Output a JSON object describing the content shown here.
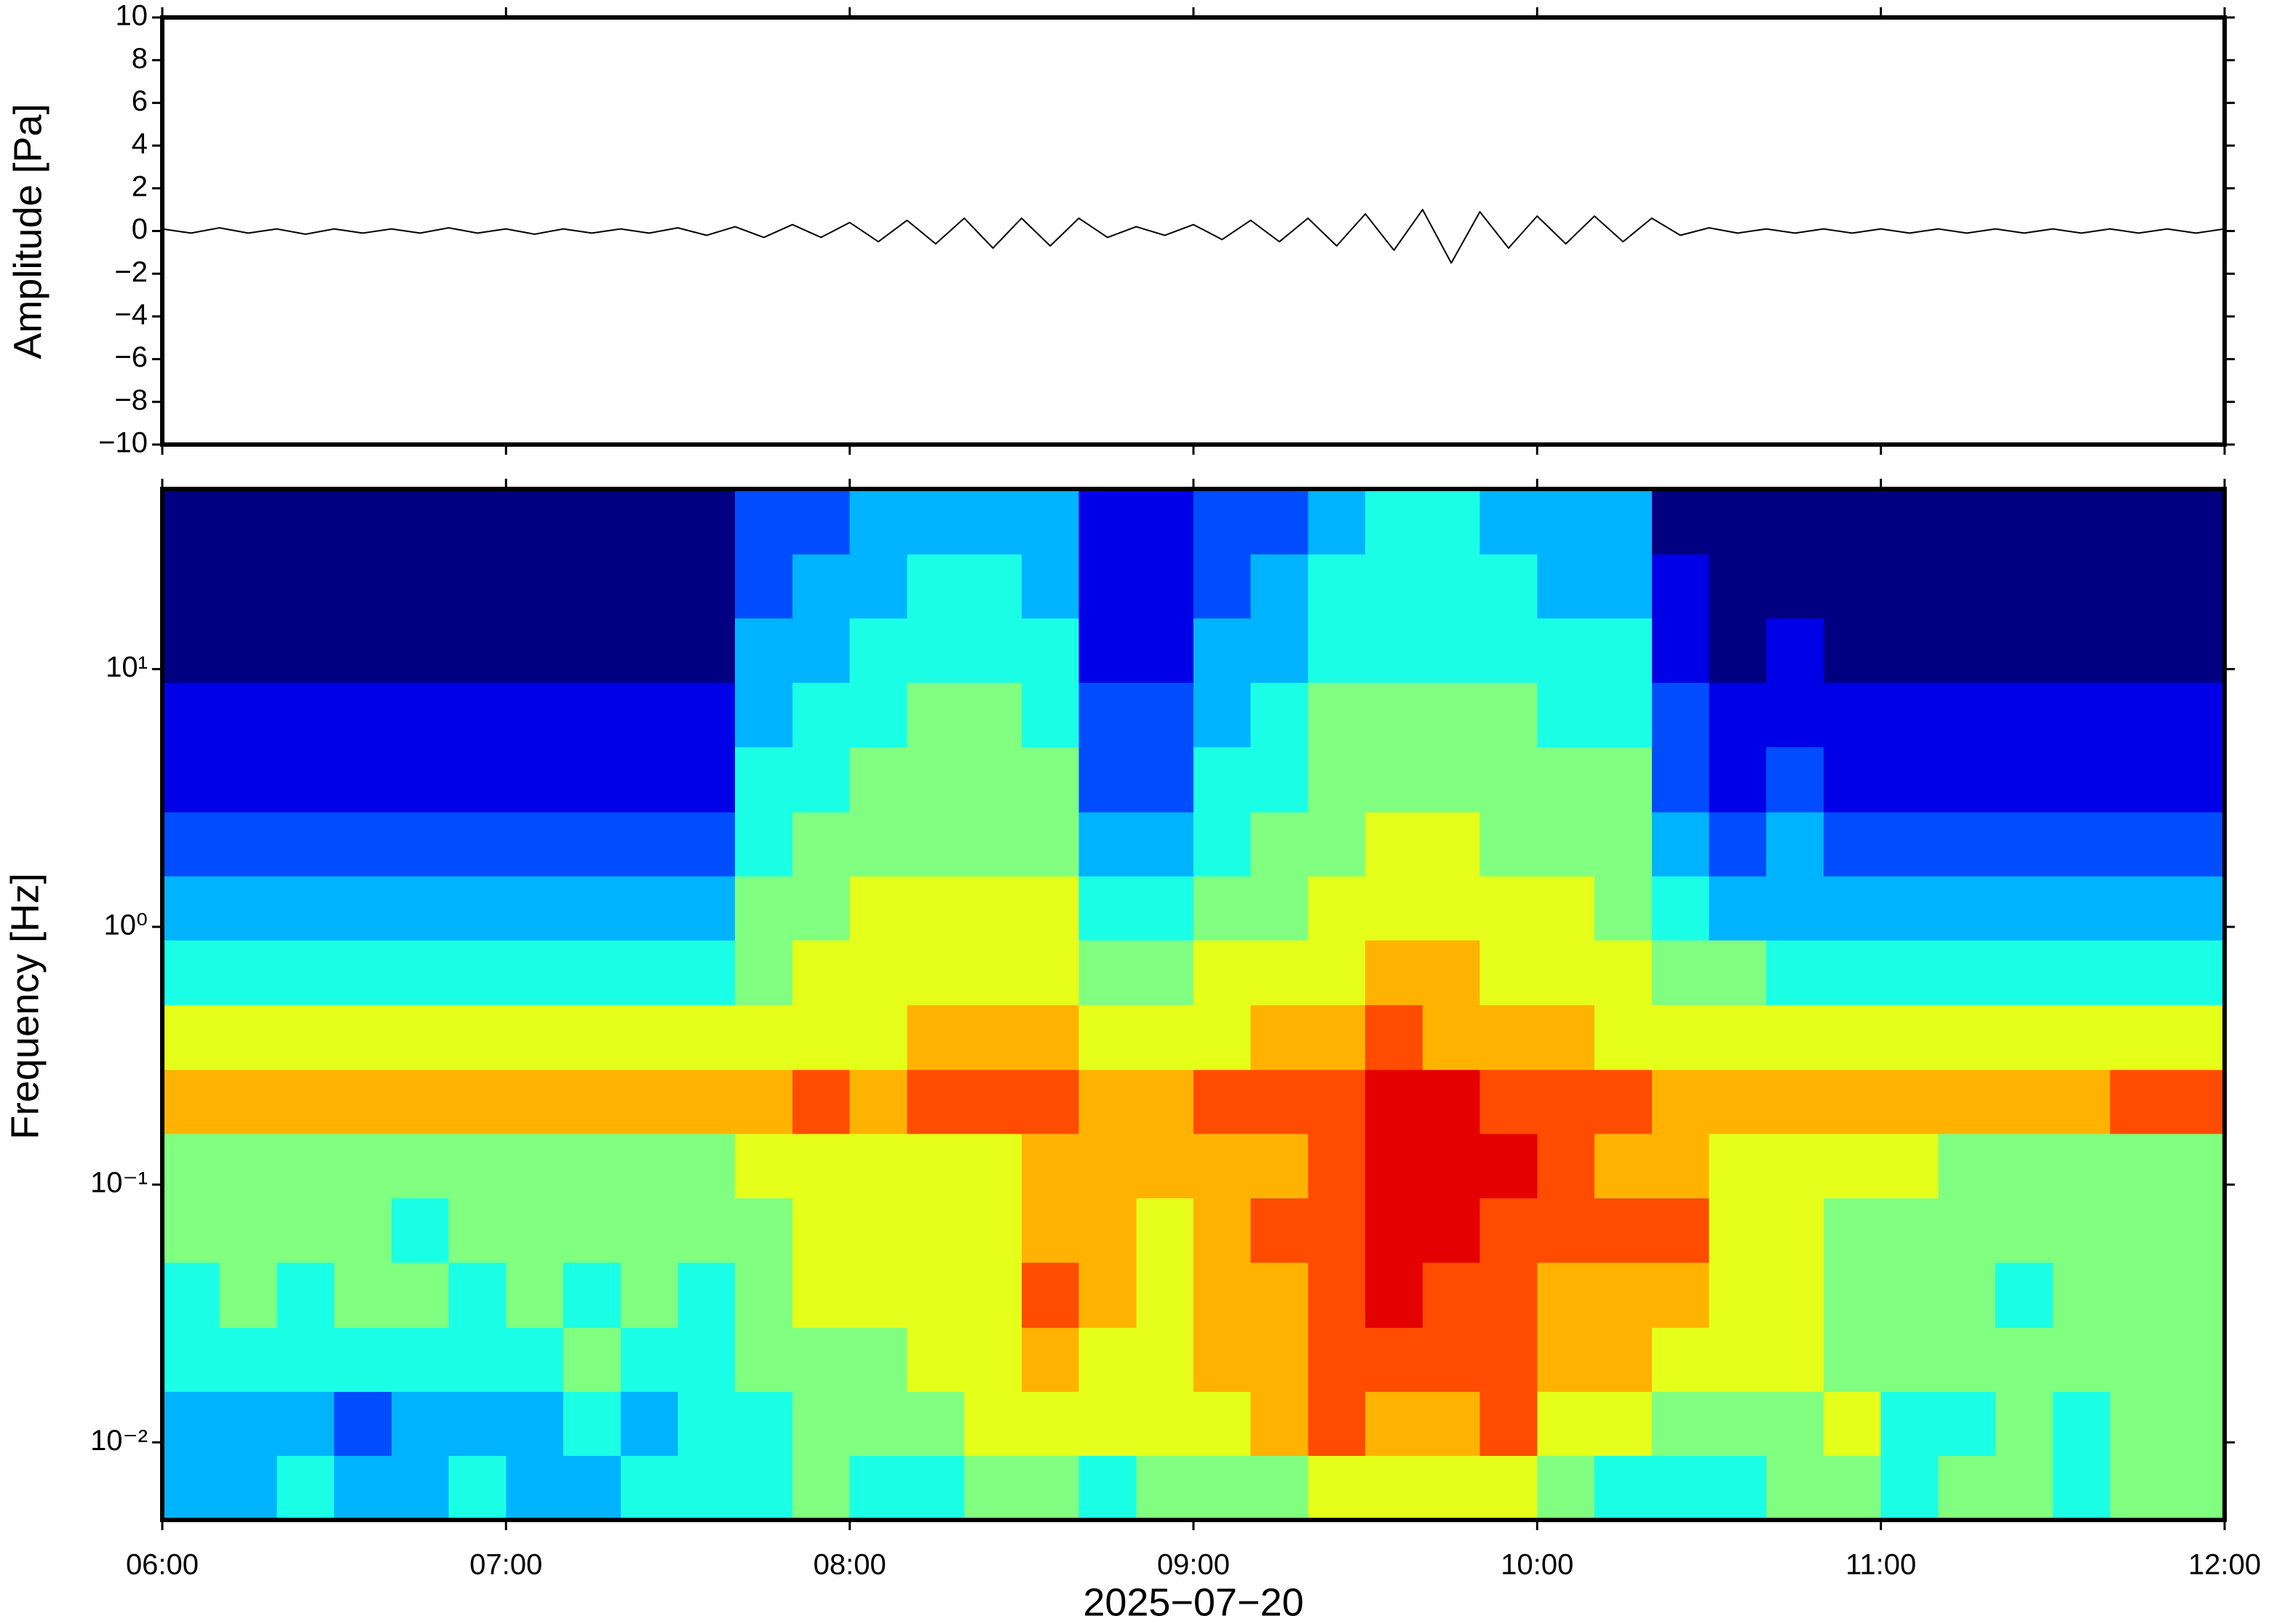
{
  "chart_data": [
    {
      "type": "line",
      "ylabel": "Amplitude [Pa]",
      "color": "#000000",
      "x": [
        "06:00",
        "06:05",
        "06:10",
        "06:15",
        "06:20",
        "06:25",
        "06:30",
        "06:35",
        "06:40",
        "06:45",
        "06:50",
        "06:55",
        "07:00",
        "07:05",
        "07:10",
        "07:15",
        "07:20",
        "07:25",
        "07:30",
        "07:35",
        "07:40",
        "07:45",
        "07:50",
        "07:55",
        "08:00",
        "08:05",
        "08:10",
        "08:15",
        "08:20",
        "08:25",
        "08:30",
        "08:35",
        "08:40",
        "08:45",
        "08:50",
        "08:55",
        "09:00",
        "09:05",
        "09:10",
        "09:15",
        "09:20",
        "09:25",
        "09:30",
        "09:35",
        "09:40",
        "09:45",
        "09:50",
        "09:55",
        "10:00",
        "10:05",
        "10:10",
        "10:15",
        "10:20",
        "10:25",
        "10:30",
        "10:35",
        "10:40",
        "10:45",
        "10:50",
        "10:55",
        "11:00",
        "11:05",
        "11:10",
        "11:15",
        "11:20",
        "11:25",
        "11:30",
        "11:35",
        "11:40",
        "11:45",
        "11:50",
        "11:55",
        "12:00"
      ],
      "values": [
        0.1,
        -0.1,
        0.15,
        -0.1,
        0.1,
        -0.15,
        0.1,
        -0.1,
        0.1,
        -0.1,
        0.15,
        -0.1,
        0.1,
        -0.15,
        0.1,
        -0.1,
        0.1,
        -0.1,
        0.15,
        -0.2,
        0.2,
        -0.3,
        0.3,
        -0.3,
        0.4,
        -0.5,
        0.5,
        -0.6,
        0.6,
        -0.8,
        0.6,
        -0.7,
        0.6,
        -0.3,
        0.2,
        -0.2,
        0.3,
        -0.4,
        0.5,
        -0.5,
        0.6,
        -0.7,
        0.8,
        -0.9,
        1.0,
        -1.5,
        0.9,
        -0.8,
        0.7,
        -0.6,
        0.7,
        -0.5,
        0.6,
        -0.2,
        0.15,
        -0.1,
        0.1,
        -0.1,
        0.1,
        -0.1,
        0.1,
        -0.1,
        0.1,
        -0.1,
        0.1,
        -0.1,
        0.1,
        -0.1,
        0.1,
        -0.1,
        0.1,
        -0.1,
        0.1
      ],
      "xlim": [
        "06:00",
        "12:00"
      ],
      "xticks": [
        "06:00",
        "07:00",
        "08:00",
        "09:00",
        "10:00",
        "11:00",
        "12:00"
      ],
      "ylim": [
        -10,
        10
      ],
      "yticks": [
        {
          "value": -10,
          "label": "−10"
        },
        {
          "value": -8,
          "label": "−8"
        },
        {
          "value": -6,
          "label": "−6"
        },
        {
          "value": -4,
          "label": "−4"
        },
        {
          "value": -2,
          "label": "−2"
        },
        0,
        2,
        4,
        6,
        8,
        10
      ]
    },
    {
      "type": "heatmap",
      "ylabel": "Frequency [Hz]",
      "xlabel": "2025−07−20",
      "colormap": "jet",
      "log_y": true,
      "zlim": [
        0,
        10
      ],
      "x_bins": [
        "06:00",
        "06:10",
        "06:20",
        "06:30",
        "06:40",
        "06:50",
        "07:00",
        "07:10",
        "07:20",
        "07:30",
        "07:40",
        "07:50",
        "08:00",
        "08:10",
        "08:20",
        "08:30",
        "08:40",
        "08:50",
        "09:00",
        "09:10",
        "09:20",
        "09:30",
        "09:40",
        "09:50",
        "10:00",
        "10:10",
        "10:20",
        "10:30",
        "10:40",
        "10:50",
        "11:00",
        "11:10",
        "11:20",
        "11:30",
        "11:40",
        "11:50",
        "12:00"
      ],
      "y_bins": [
        0.005,
        0.0089,
        0.0158,
        0.028,
        0.05,
        0.089,
        0.158,
        0.28,
        0.5,
        0.89,
        1.58,
        2.8,
        5,
        8.9,
        15.8,
        28,
        50
      ],
      "values": [
        [
          3,
          3,
          4,
          3,
          3,
          4,
          3,
          3,
          4,
          4,
          4,
          5,
          4,
          4,
          5,
          5,
          4,
          5,
          5,
          5,
          6,
          6,
          6,
          6,
          5,
          4,
          4,
          4,
          5,
          5,
          4,
          5,
          5,
          4,
          5,
          5
        ],
        [
          3,
          3,
          3,
          2,
          3,
          3,
          3,
          4,
          3,
          4,
          4,
          5,
          5,
          5,
          6,
          6,
          6,
          6,
          6,
          7,
          8,
          7,
          7,
          8,
          6,
          6,
          5,
          5,
          5,
          6,
          4,
          4,
          5,
          4,
          5,
          5
        ],
        [
          4,
          4,
          4,
          4,
          4,
          4,
          4,
          5,
          4,
          4,
          5,
          5,
          5,
          6,
          6,
          7,
          6,
          6,
          7,
          7,
          8,
          8,
          8,
          8,
          7,
          7,
          6,
          6,
          6,
          5,
          5,
          5,
          5,
          5,
          5,
          5
        ],
        [
          4,
          5,
          4,
          5,
          5,
          4,
          5,
          4,
          5,
          4,
          5,
          6,
          6,
          6,
          6,
          8,
          7,
          6,
          7,
          7,
          8,
          9,
          8,
          8,
          7,
          7,
          7,
          6,
          6,
          5,
          5,
          5,
          4,
          5,
          5,
          5
        ],
        [
          5,
          5,
          5,
          5,
          4,
          5,
          5,
          5,
          5,
          5,
          5,
          6,
          6,
          6,
          6,
          7,
          7,
          6,
          7,
          8,
          8,
          9,
          9,
          8,
          8,
          8,
          8,
          6,
          6,
          5,
          5,
          5,
          5,
          5,
          5,
          5
        ],
        [
          5,
          5,
          5,
          5,
          5,
          5,
          5,
          5,
          5,
          5,
          6,
          6,
          6,
          6,
          6,
          7,
          7,
          7,
          7,
          7,
          8,
          9,
          9,
          9,
          8,
          7,
          7,
          6,
          6,
          6,
          6,
          5,
          5,
          5,
          5,
          5
        ],
        [
          7,
          7,
          7,
          7,
          7,
          7,
          7,
          7,
          7,
          7,
          7,
          8,
          7,
          8,
          8,
          8,
          7,
          7,
          8,
          8,
          8,
          9,
          9,
          8,
          8,
          8,
          7,
          7,
          7,
          7,
          7,
          7,
          7,
          7,
          8,
          8
        ],
        [
          6,
          6,
          6,
          6,
          6,
          6,
          6,
          6,
          6,
          6,
          6,
          6,
          6,
          7,
          7,
          7,
          6,
          6,
          6,
          7,
          7,
          8,
          7,
          7,
          7,
          6,
          6,
          6,
          6,
          6,
          6,
          6,
          6,
          6,
          6,
          6
        ],
        [
          4,
          4,
          4,
          4,
          4,
          4,
          4,
          4,
          4,
          4,
          5,
          6,
          6,
          6,
          6,
          6,
          5,
          5,
          6,
          6,
          6,
          7,
          7,
          6,
          6,
          6,
          5,
          5,
          4,
          4,
          4,
          4,
          4,
          4,
          4,
          4
        ],
        [
          3,
          3,
          3,
          3,
          3,
          3,
          3,
          3,
          3,
          3,
          5,
          5,
          6,
          6,
          6,
          6,
          4,
          4,
          5,
          5,
          6,
          6,
          6,
          6,
          6,
          5,
          4,
          3,
          3,
          3,
          3,
          3,
          3,
          3,
          3,
          3
        ],
        [
          2,
          2,
          2,
          2,
          2,
          2,
          2,
          2,
          2,
          2,
          4,
          5,
          5,
          5,
          5,
          5,
          3,
          3,
          4,
          5,
          5,
          6,
          6,
          5,
          5,
          5,
          3,
          2,
          3,
          2,
          2,
          2,
          2,
          2,
          2,
          2
        ],
        [
          1,
          1,
          1,
          1,
          1,
          1,
          1,
          1,
          1,
          1,
          4,
          4,
          5,
          5,
          5,
          5,
          2,
          2,
          4,
          4,
          5,
          5,
          5,
          5,
          5,
          5,
          2,
          1,
          2,
          1,
          1,
          1,
          1,
          1,
          1,
          1
        ],
        [
          1,
          1,
          1,
          1,
          1,
          1,
          1,
          1,
          1,
          1,
          3,
          4,
          4,
          5,
          5,
          4,
          2,
          2,
          3,
          4,
          5,
          5,
          5,
          5,
          4,
          4,
          2,
          1,
          1,
          1,
          1,
          1,
          1,
          1,
          1,
          1
        ],
        [
          0,
          0,
          0,
          0,
          0,
          0,
          0,
          0,
          0,
          0,
          3,
          3,
          4,
          4,
          4,
          4,
          1,
          1,
          3,
          3,
          4,
          4,
          4,
          4,
          4,
          4,
          1,
          0,
          1,
          0,
          0,
          0,
          0,
          0,
          0,
          0
        ],
        [
          0,
          0,
          0,
          0,
          0,
          0,
          0,
          0,
          0,
          0,
          2,
          3,
          3,
          4,
          4,
          3,
          1,
          1,
          2,
          3,
          4,
          4,
          4,
          4,
          3,
          3,
          1,
          0,
          0,
          0,
          0,
          0,
          0,
          0,
          0,
          0
        ],
        [
          0,
          0,
          0,
          0,
          0,
          0,
          0,
          0,
          0,
          0,
          2,
          2,
          3,
          3,
          3,
          3,
          1,
          1,
          2,
          2,
          3,
          4,
          4,
          3,
          3,
          3,
          0,
          0,
          0,
          0,
          0,
          0,
          0,
          0,
          0,
          0
        ]
      ],
      "xlim": [
        "06:00",
        "12:00"
      ],
      "xticks": [
        "06:00",
        "07:00",
        "08:00",
        "09:00",
        "10:00",
        "11:00",
        "12:00"
      ],
      "ylim": [
        0.005,
        50
      ],
      "yticks": [
        {
          "value": 0.01,
          "label": "10⁻²"
        },
        {
          "value": 0.1,
          "label": "10⁻¹"
        },
        {
          "value": 1,
          "label": "10⁰"
        },
        {
          "value": 10,
          "label": "10¹"
        }
      ]
    }
  ]
}
